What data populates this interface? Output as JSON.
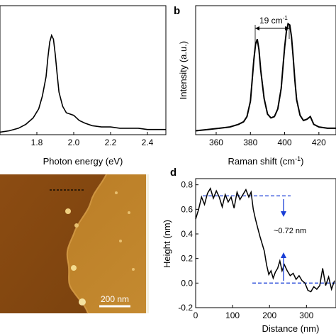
{
  "colors": {
    "line": "#000000",
    "guide": "#1a3fd6",
    "afm_dark": "#8a4a10",
    "afm_light": "#c98a2a"
  },
  "panels": {
    "b": "b",
    "d": "d"
  },
  "annotations": {
    "b_gap": "19 cm",
    "b_gap_sup": "-1",
    "c_scale": "200 nm",
    "d_step": "~0.72 nm"
  },
  "chart_data": [
    {
      "type": "line",
      "xlabel": "Photon energy (eV)",
      "ylabel": "",
      "xlim": [
        1.6,
        2.5
      ],
      "ylim": [
        0,
        1.0
      ],
      "xticks": [
        "1.8",
        "2.0",
        "2.2",
        "2.4"
      ],
      "series": [
        {
          "x": [
            1.6,
            1.65,
            1.7,
            1.74,
            1.78,
            1.81,
            1.83,
            1.85,
            1.86,
            1.87,
            1.88,
            1.89,
            1.9,
            1.91,
            1.92,
            1.94,
            1.96,
            1.98,
            2.0,
            2.03,
            2.06,
            2.1,
            2.15,
            2.2,
            2.25,
            2.3,
            2.35,
            2.4,
            2.45,
            2.5
          ],
          "y": [
            0.02,
            0.03,
            0.05,
            0.08,
            0.13,
            0.2,
            0.3,
            0.45,
            0.6,
            0.72,
            0.77,
            0.74,
            0.62,
            0.47,
            0.33,
            0.22,
            0.17,
            0.16,
            0.15,
            0.11,
            0.09,
            0.07,
            0.06,
            0.06,
            0.05,
            0.05,
            0.05,
            0.04,
            0.04,
            0.04
          ]
        }
      ]
    },
    {
      "type": "line",
      "xlabel": "Raman shift (cm",
      "xlabel_sup": "-1",
      "xlabel_end": ")",
      "ylabel": "Intensity (a.u.)",
      "xlim": [
        348,
        430
      ],
      "ylim": [
        0,
        1.0
      ],
      "xticks": [
        "360",
        "380",
        "400",
        "420"
      ],
      "series": [
        {
          "x": [
            348,
            355,
            362,
            368,
            373,
            376,
            378,
            380,
            381,
            382,
            383,
            384,
            385,
            386,
            388,
            390,
            392,
            394,
            396,
            398,
            399,
            400,
            401,
            402,
            403,
            404,
            405,
            406,
            407,
            409,
            411,
            413,
            415,
            417,
            420,
            425,
            430
          ],
          "y": [
            0.03,
            0.04,
            0.05,
            0.06,
            0.08,
            0.1,
            0.14,
            0.26,
            0.42,
            0.58,
            0.7,
            0.74,
            0.66,
            0.5,
            0.28,
            0.16,
            0.13,
            0.14,
            0.2,
            0.36,
            0.52,
            0.68,
            0.8,
            0.86,
            0.85,
            0.76,
            0.6,
            0.42,
            0.27,
            0.15,
            0.11,
            0.12,
            0.14,
            0.08,
            0.06,
            0.05,
            0.05
          ]
        }
      ]
    },
    {
      "type": "line",
      "xlabel": "Distance (nm)",
      "ylabel": "Height (nm)",
      "xlim": [
        0,
        380
      ],
      "ylim": [
        -0.2,
        0.85
      ],
      "xticks": [
        "0",
        "100",
        "200",
        "300"
      ],
      "yticks": [
        "-0.2",
        "0.0",
        "0.2",
        "0.4",
        "0.6",
        "0.8"
      ],
      "series": [
        {
          "x": [
            0,
            8,
            16,
            24,
            32,
            40,
            48,
            56,
            64,
            72,
            80,
            88,
            96,
            104,
            112,
            120,
            128,
            136,
            144,
            150,
            156,
            162,
            168,
            174,
            180,
            186,
            192,
            198,
            204,
            210,
            216,
            222,
            228,
            234,
            240,
            248,
            256,
            264,
            272,
            280,
            288,
            296,
            304,
            312,
            320,
            328,
            336,
            344,
            352,
            360,
            368,
            376
          ],
          "y": [
            0.52,
            0.6,
            0.7,
            0.64,
            0.73,
            0.77,
            0.69,
            0.75,
            0.7,
            0.62,
            0.72,
            0.66,
            0.7,
            0.61,
            0.74,
            0.68,
            0.72,
            0.76,
            0.7,
            0.74,
            0.6,
            0.52,
            0.45,
            0.38,
            0.32,
            0.26,
            0.15,
            0.07,
            0.1,
            0.04,
            0.09,
            0.12,
            0.18,
            0.1,
            0.15,
            0.1,
            0.06,
            0.08,
            0.03,
            0.06,
            0.02,
            0.0,
            -0.06,
            -0.07,
            -0.03,
            -0.05,
            -0.02,
            0.12,
            -0.02,
            0.05,
            -0.05,
            0.02
          ]
        }
      ],
      "guides": [
        0.71,
        0.0
      ]
    }
  ]
}
